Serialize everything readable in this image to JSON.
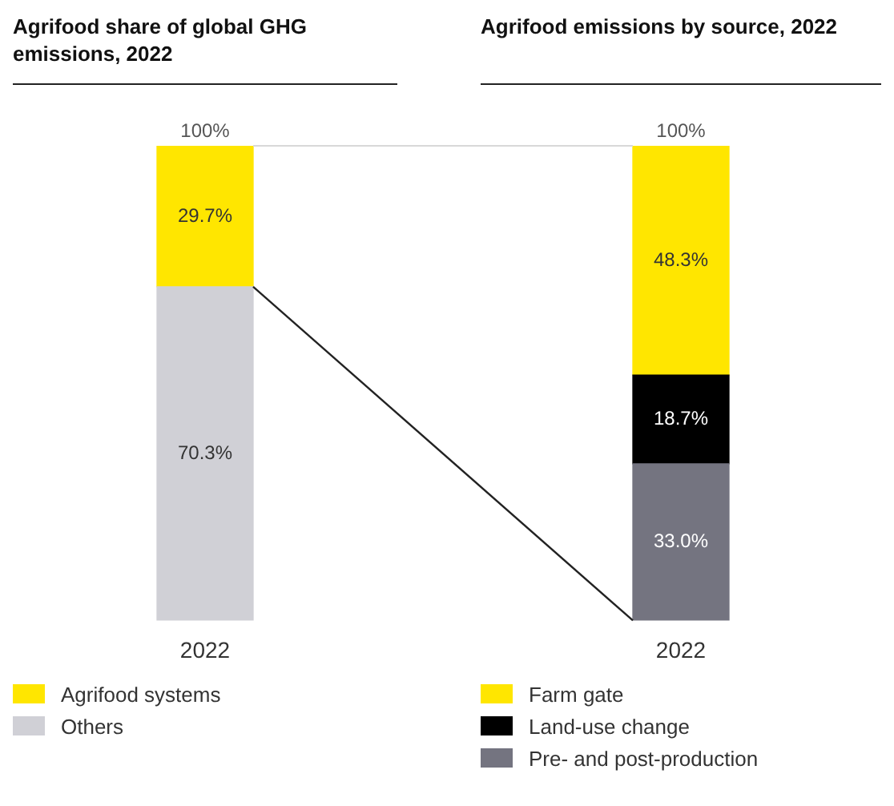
{
  "chart_data": [
    {
      "type": "bar",
      "title": "Agrifood share of global GHG emissions, 2022",
      "categories": [
        "2022"
      ],
      "stacked": true,
      "ylim": [
        0,
        100
      ],
      "tick_labels": "x",
      "grid": false,
      "legend": "bottom left",
      "data_labels": true,
      "totals": [
        "100%"
      ],
      "series": [
        {
          "name": "Others",
          "color": "#d0d0d6",
          "values": [
            70.3
          ],
          "value_labels": [
            "70.3%"
          ]
        },
        {
          "name": "Agrifood systems",
          "color": "#ffe600",
          "values": [
            29.7
          ],
          "value_labels": [
            "29.7%"
          ]
        }
      ]
    },
    {
      "type": "bar",
      "title": "Agrifood emissions by source, 2022",
      "categories": [
        "2022"
      ],
      "stacked": true,
      "ylim": [
        0,
        100
      ],
      "tick_labels": "x",
      "grid": false,
      "legend": "bottom left",
      "data_labels": true,
      "totals": [
        "100%"
      ],
      "series": [
        {
          "name": "Pre- and post-production",
          "color": "#747480",
          "values": [
            33.0
          ],
          "value_labels": [
            "33.0%"
          ]
        },
        {
          "name": "Land-use change",
          "color": "#000000",
          "values": [
            18.7
          ],
          "value_labels": [
            "18.7%"
          ]
        },
        {
          "name": "Farm gate",
          "color": "#ffe600",
          "values": [
            48.3
          ],
          "value_labels": [
            "48.3%"
          ]
        }
      ]
    }
  ]
}
